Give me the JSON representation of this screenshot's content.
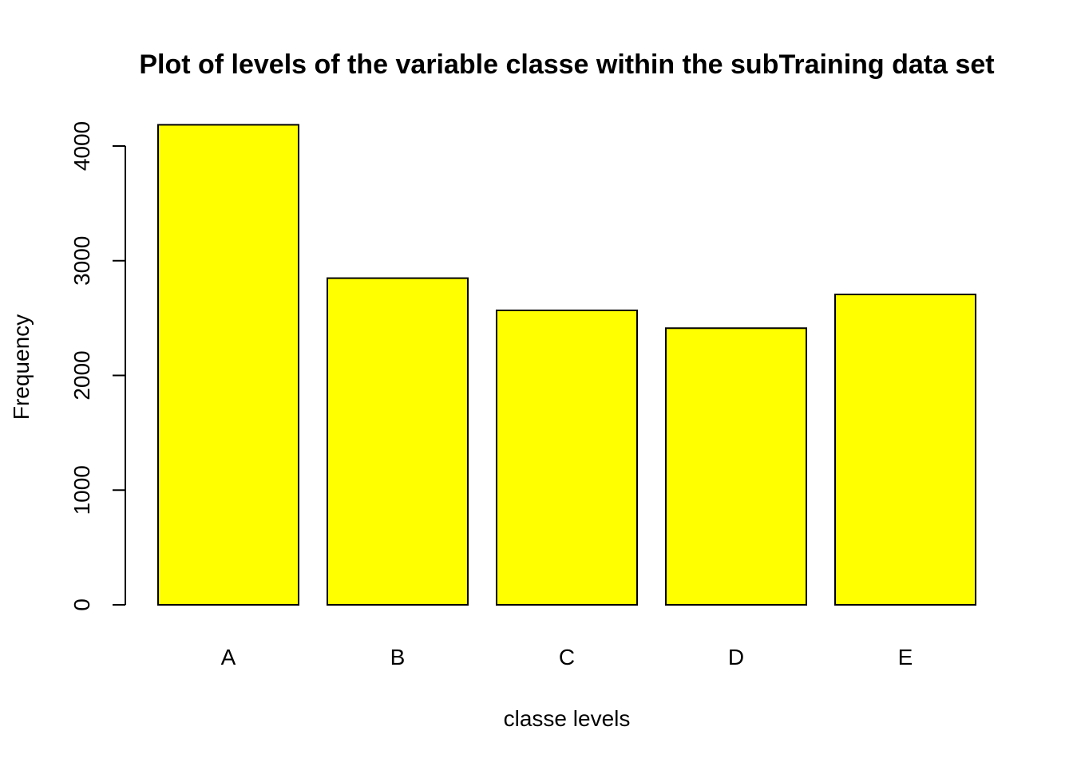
{
  "chart_data": {
    "type": "bar",
    "title": "Plot of levels of the variable classe within the subTraining data set",
    "xlabel": "classe levels",
    "ylabel": "Frequency",
    "categories": [
      "A",
      "B",
      "C",
      "D",
      "E"
    ],
    "values": [
      4185,
      2848,
      2567,
      2412,
      2706
    ],
    "ylim": [
      0,
      4000
    ],
    "yticks": [
      0,
      1000,
      2000,
      3000,
      4000
    ],
    "bar_color": "#ffff00",
    "bar_border": "#000000",
    "grid": false,
    "legend": "none"
  }
}
